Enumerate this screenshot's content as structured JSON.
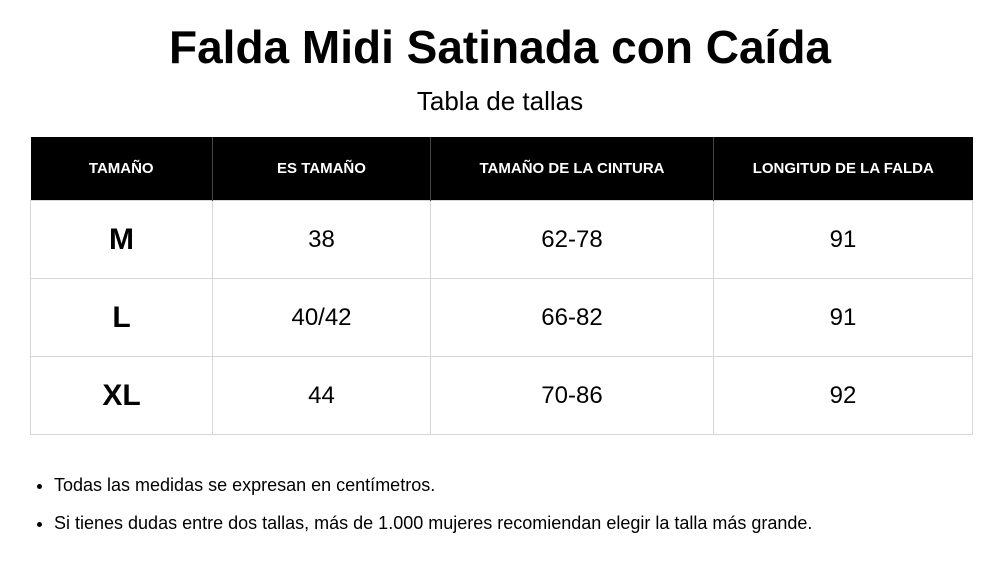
{
  "header": {
    "title": "Falda Midi Satinada con Caída",
    "subtitle": "Tabla de tallas"
  },
  "table": {
    "columns": [
      "TAMAÑO",
      "ES TAMAÑO",
      "TAMAÑO DE LA CINTURA",
      "LONGITUD DE LA FALDA"
    ],
    "rows": [
      [
        "M",
        "38",
        "62-78",
        "91"
      ],
      [
        "L",
        "40/42",
        "66-82",
        "91"
      ],
      [
        "XL",
        "44",
        "70-86",
        "92"
      ]
    ]
  },
  "notes": [
    "Todas las medidas se expresan en centímetros.",
    "Si tienes dudas entre dos tallas, más de 1.000 mujeres recomiendan elegir la talla más grande."
  ]
}
